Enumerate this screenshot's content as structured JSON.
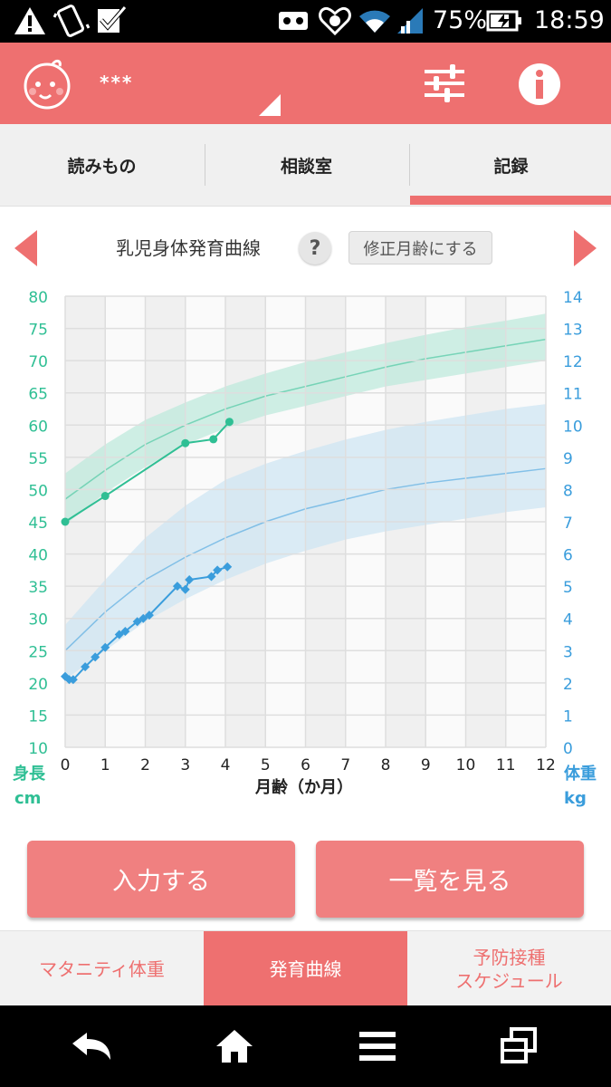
{
  "status_bar": {
    "battery_percent": "75%",
    "time": "18:59",
    "icons": [
      "warning-icon",
      "phone-vibrate-icon",
      "check-icon",
      "voicemail-icon",
      "health-icon",
      "wifi-icon",
      "signal-icon",
      "battery-charging-icon"
    ]
  },
  "app_bar": {
    "child_name": "***",
    "icons": [
      "baby-avatar-icon",
      "settings-sliders-icon",
      "info-icon"
    ]
  },
  "top_tabs": [
    {
      "label": "読みもの"
    },
    {
      "label": "相談室"
    },
    {
      "label": "記録",
      "selected": true
    }
  ],
  "chart_header": {
    "title": "乳児身体発育曲線",
    "help_label": "?",
    "corrected_age_label": "修正月齢にする"
  },
  "chart_data": {
    "type": "line",
    "x_label": "月齢（か月）",
    "x_ticks": [
      "0",
      "1",
      "2",
      "3",
      "4",
      "5",
      "6",
      "7",
      "8",
      "9",
      "10",
      "11",
      "12"
    ],
    "xlim": [
      0,
      12
    ],
    "y_left": {
      "label_line1": "身長",
      "label_line2": "cm",
      "ticks": [
        "10",
        "15",
        "20",
        "25",
        "30",
        "35",
        "40",
        "45",
        "50",
        "55",
        "60",
        "65",
        "70",
        "75",
        "80"
      ],
      "range": [
        10,
        80
      ]
    },
    "y_right": {
      "label_line1": "体重",
      "label_line2": "kg",
      "ticks": [
        "0",
        "1",
        "2",
        "3",
        "4",
        "5",
        "6",
        "7",
        "8",
        "9",
        "10",
        "11",
        "12",
        "13",
        "14"
      ],
      "range": [
        0,
        14
      ]
    },
    "grid": true,
    "colors": {
      "height": "#2fbf94",
      "height_band": "#bfeadc",
      "weight": "#3a9ddc",
      "weight_band": "#cfe5f3"
    },
    "reference_bands": {
      "height": {
        "x": [
          0,
          1,
          2,
          3,
          4,
          5,
          6,
          7,
          8,
          9,
          10,
          11,
          12
        ],
        "lower": [
          44.5,
          49.5,
          53.5,
          57,
          59.5,
          61.5,
          63,
          64.5,
          66,
          67,
          68,
          69,
          70
        ],
        "median": [
          48.5,
          53,
          57,
          60,
          62.5,
          64.5,
          66,
          67.5,
          69,
          70.3,
          71.3,
          72.3,
          73.3
        ],
        "upper": [
          52.5,
          57,
          60.8,
          63.5,
          66,
          68,
          69.8,
          71.3,
          72.7,
          74,
          75.2,
          76.2,
          77.3
        ]
      },
      "weight": {
        "x": [
          0,
          1,
          2,
          3,
          4,
          5,
          6,
          7,
          8,
          9,
          10,
          11,
          12
        ],
        "lower": [
          2.1,
          3.0,
          3.9,
          4.6,
          5.2,
          5.7,
          6.1,
          6.45,
          6.7,
          6.9,
          7.1,
          7.3,
          7.45
        ],
        "median": [
          3.0,
          4.2,
          5.2,
          5.9,
          6.5,
          7.0,
          7.4,
          7.7,
          8.0,
          8.2,
          8.35,
          8.5,
          8.65
        ],
        "upper": [
          3.8,
          5.2,
          6.5,
          7.5,
          8.3,
          8.8,
          9.2,
          9.55,
          9.85,
          10.1,
          10.3,
          10.5,
          10.65
        ]
      }
    },
    "series": [
      {
        "axis": "left",
        "marker": "circle",
        "x": [
          0,
          1,
          3,
          3.7,
          4.1
        ],
        "y": [
          45,
          49,
          57.2,
          57.8,
          60.5
        ]
      },
      {
        "axis": "right",
        "marker": "diamond",
        "x": [
          0,
          0.1,
          0.2,
          0.5,
          0.75,
          1,
          1.35,
          1.5,
          1.8,
          1.95,
          2.1,
          2.8,
          3.0,
          3.1,
          3.65,
          3.8,
          4.05
        ],
        "y": [
          2.2,
          2.1,
          2.1,
          2.5,
          2.8,
          3.1,
          3.5,
          3.6,
          3.9,
          4.0,
          4.1,
          5.0,
          4.9,
          5.2,
          5.3,
          5.5,
          5.6
        ]
      }
    ]
  },
  "actions": {
    "input_label": "入力する",
    "list_label": "一覧を見る"
  },
  "bottom_tabs": [
    {
      "label": "マタニティ体重"
    },
    {
      "label": "発育曲線",
      "selected": true
    },
    {
      "label_line1": "予防接種",
      "label_line2": "スケジュール"
    }
  ],
  "nav_bar": {
    "icons": [
      "back-icon",
      "home-icon",
      "menu-icon",
      "recent-apps-icon"
    ]
  }
}
